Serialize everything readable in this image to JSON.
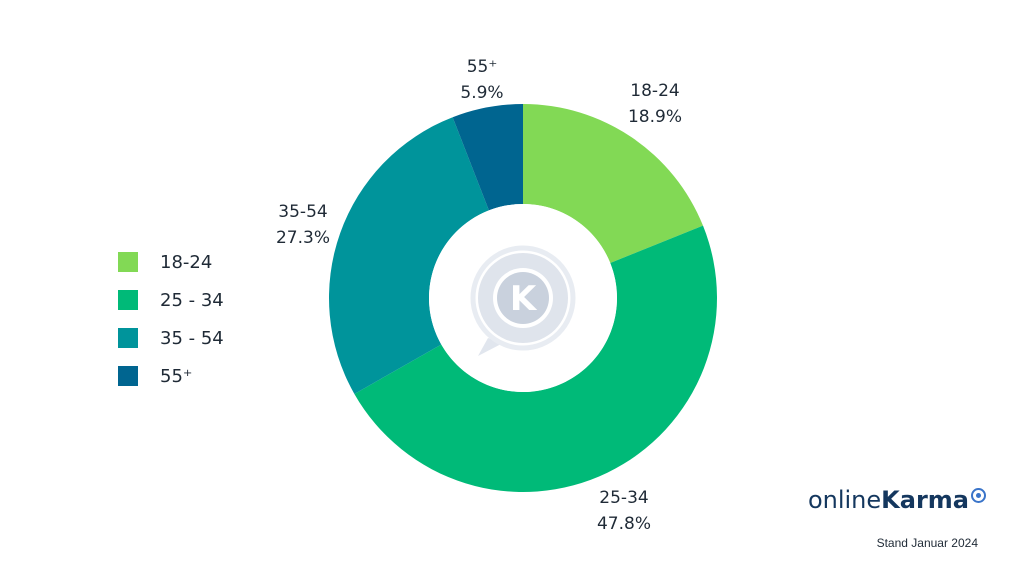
{
  "chart_data": {
    "type": "pie",
    "donut": true,
    "categories": [
      "18-24",
      "25-34",
      "35-54",
      "55+"
    ],
    "values": [
      18.9,
      47.8,
      27.3,
      5.9
    ],
    "slice_labels": [
      {
        "name": "18-24",
        "value": "18.9%"
      },
      {
        "name": "25-34",
        "value": "47.8%"
      },
      {
        "name": "35-54",
        "value": "27.3%"
      },
      {
        "name": "55⁺",
        "value": "5.9%"
      }
    ],
    "colors": [
      "#82d955",
      "#00ba78",
      "#00949b",
      "#006590"
    ],
    "legend": {
      "placement": "left",
      "entries": [
        "18-24",
        "25 - 34",
        "35 - 54",
        "55⁺"
      ]
    },
    "title": ""
  },
  "brand": {
    "name_light": "online",
    "name_bold": "Karma",
    "stand": "Stand Januar 2024"
  },
  "center_logo": {
    "letter": "K",
    "icon": "chat-bubble-k-icon"
  }
}
